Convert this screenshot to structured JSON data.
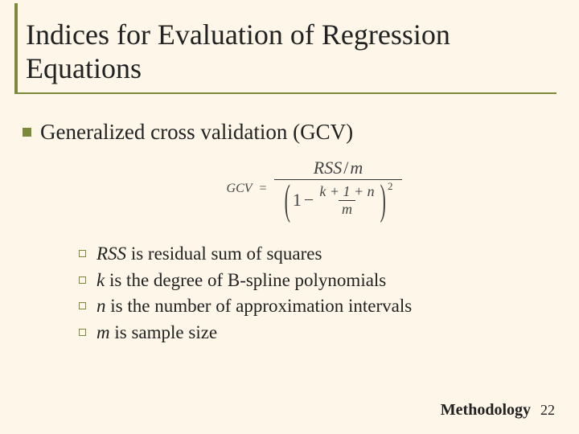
{
  "colors": {
    "background": "#fdf6e9",
    "accent": "#7a8a3a",
    "text": "#222222",
    "formula": "#444444"
  },
  "title": "Indices for Evaluation of Regression Equations",
  "heading": "Generalized cross validation (GCV)",
  "formula": {
    "lhs": "GCV",
    "numerator_left": "RSS",
    "numerator_right": "m",
    "denom_one": "1",
    "denom_minus": "−",
    "denom_frac_num": "k + 1 + n",
    "denom_frac_den": "m",
    "exponent": "2"
  },
  "sub_items": [
    {
      "var": "RSS",
      "text": " is residual sum of squares"
    },
    {
      "var": "k",
      "text": " is the degree of B-spline polynomials"
    },
    {
      "var": "n",
      "text": " is the number of approximation intervals"
    },
    {
      "var": "m",
      "text": " is sample size"
    }
  ],
  "footer_label": "Methodology",
  "page_number": "22"
}
